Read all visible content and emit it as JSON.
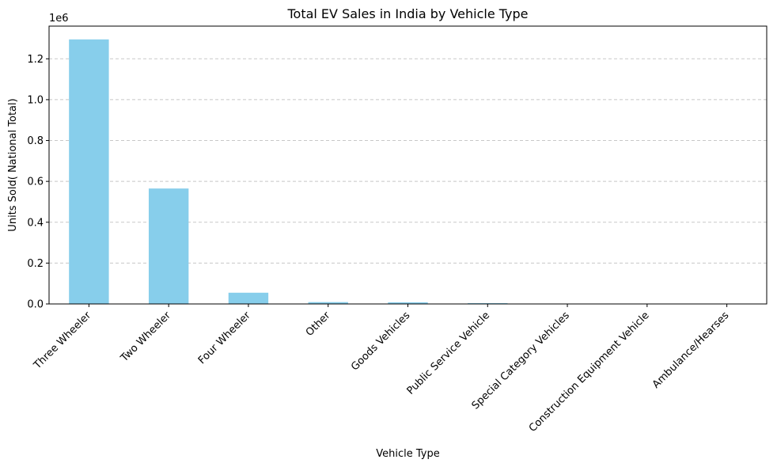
{
  "chart_data": {
    "type": "bar",
    "title": "Total EV Sales in India by Vehicle Type",
    "xlabel": "Vehicle Type",
    "ylabel": "Units Sold( National Total)",
    "y_offset_label": "1e6",
    "categories": [
      "Three Wheeler",
      "Two Wheeler",
      "Four Wheeler",
      "Other",
      "Goods Vehicles",
      "Public Service Vehicle",
      "Special Category Vehicles",
      "Construction Equipment Vehicle",
      "Ambulance/Hearses"
    ],
    "values": [
      1295000,
      565000,
      55000,
      9000,
      8000,
      4000,
      700,
      300,
      100
    ],
    "ylim": [
      0,
      1360000
    ],
    "yticks": [
      0,
      200000,
      400000,
      600000,
      800000,
      1000000,
      1200000
    ],
    "ytick_labels": [
      "0.0",
      "0.2",
      "0.4",
      "0.6",
      "0.8",
      "1.0",
      "1.2"
    ],
    "grid": "y-dashed",
    "bar_color": "#87ceeb",
    "grid_color": "#c8c8c8"
  }
}
